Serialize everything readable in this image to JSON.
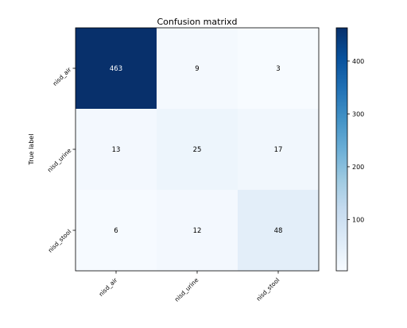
{
  "chart_data": {
    "type": "heatmap",
    "title": "Confusion matrixd",
    "xlabel": "",
    "ylabel": "True label",
    "x_categories": [
      "nisd_air",
      "nisd_urine",
      "nisd_stool"
    ],
    "y_categories": [
      "nisd_air",
      "nisd_urine",
      "nisd_stool"
    ],
    "values": [
      [
        463,
        9,
        3
      ],
      [
        13,
        25,
        17
      ],
      [
        6,
        12,
        48
      ]
    ],
    "colormap": "Blues",
    "color_range": [
      3,
      463
    ],
    "colorbar_ticks": [
      100,
      200,
      300,
      400
    ],
    "cell_text_color": "#000000",
    "high_value_text_color": "#ffffff"
  }
}
